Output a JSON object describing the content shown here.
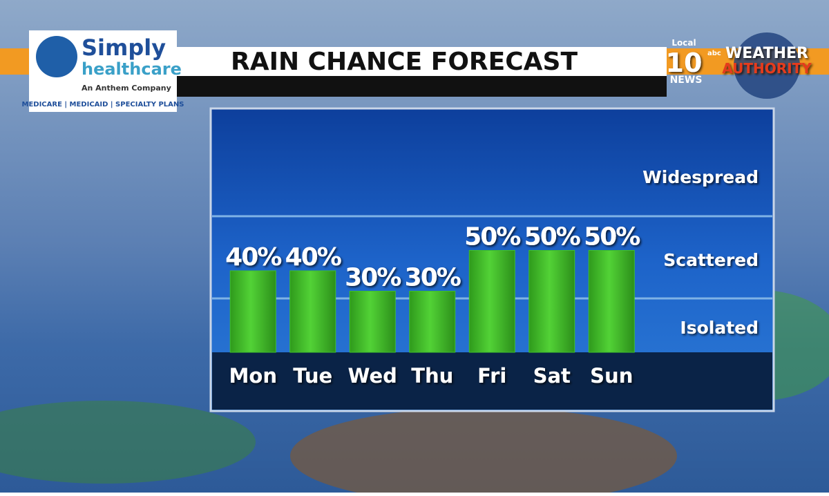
{
  "chart_data": {
    "type": "bar",
    "title": "RAIN CHANCE FORECAST",
    "categories": [
      "Mon",
      "Tue",
      "Wed",
      "Thu",
      "Fri",
      "Sat",
      "Sun"
    ],
    "values": [
      40,
      40,
      30,
      30,
      50,
      50,
      50
    ],
    "value_labels": [
      "40%",
      "40%",
      "30%",
      "30%",
      "50%",
      "50%",
      "50%"
    ],
    "color": "#3fbf2a",
    "ylim": [
      0,
      100
    ],
    "zones": [
      "Widespread",
      "Scattered",
      "Isolated"
    ]
  },
  "sponsor": {
    "name": "Simply",
    "name2": "healthcare",
    "tagline": "An Anthem Company",
    "plans": "MEDICARE | MEDICAID | SPECIALTY PLANS"
  },
  "station": {
    "local": "Local",
    "number": "10",
    "network": "abc",
    "news": "NEWS",
    "brand1": "WEATHER",
    "brand2": "AUTHORITY"
  }
}
